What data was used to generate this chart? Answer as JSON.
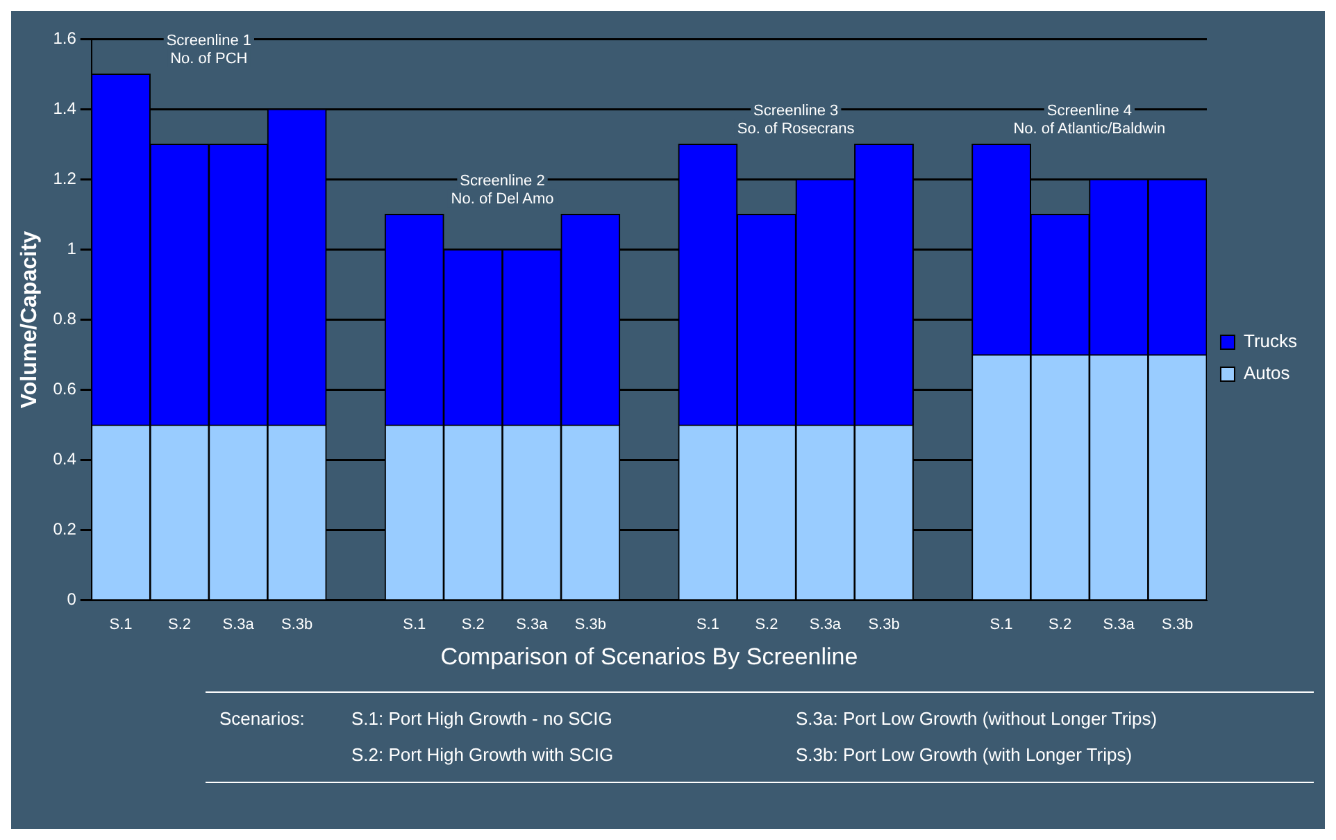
{
  "chart_data": {
    "type": "bar",
    "stacked": true,
    "xlabel": "Comparison of Scenarios By Screenline",
    "ylabel": "Volume/Capacity",
    "categories": [
      "S.1",
      "S.2",
      "S.3a",
      "S.3b",
      null,
      "S.1",
      "S.2",
      "S.3a",
      "S.3b",
      null,
      "S.1",
      "S.2",
      "S.3a",
      "S.3b",
      null,
      "S.1",
      "S.2",
      "S.3a",
      "S.3b"
    ],
    "series": [
      {
        "name": "Autos",
        "color": "#99ccff",
        "values": [
          0.5,
          0.5,
          0.5,
          0.5,
          null,
          0.5,
          0.5,
          0.5,
          0.5,
          null,
          0.5,
          0.5,
          0.5,
          0.5,
          null,
          0.7,
          0.7,
          0.7,
          0.7
        ]
      },
      {
        "name": "Trucks",
        "color": "#0000ff",
        "values": [
          1.0,
          0.8,
          0.8,
          0.9,
          null,
          0.6,
          0.5,
          0.5,
          0.6,
          null,
          0.8,
          0.6,
          0.7,
          0.8,
          null,
          0.6,
          0.4,
          0.5,
          0.5
        ]
      }
    ],
    "ylim": [
      0,
      1.6
    ],
    "yticks": [
      0,
      0.2,
      0.4,
      0.6,
      0.8,
      1,
      1.2,
      1.4,
      1.6
    ],
    "grid": "y",
    "legend": "right",
    "annotations": [
      "Screenline 1\nNo. of PCH",
      "Screenline 2\nNo. of Del Amo",
      "Screenline 3\nSo. of Rosecrans",
      "Screenline 4\nNo. of Atlantic/Baldwin",
      "Scenarios:",
      "S.1:  Port High Growth - no SCIG",
      "S.2:  Port High Growth with SCIG",
      "S.3a:  Port Low Growth (without Longer Trips)",
      "S.3b:  Port Low Growth (with Longer Trips)"
    ]
  }
}
